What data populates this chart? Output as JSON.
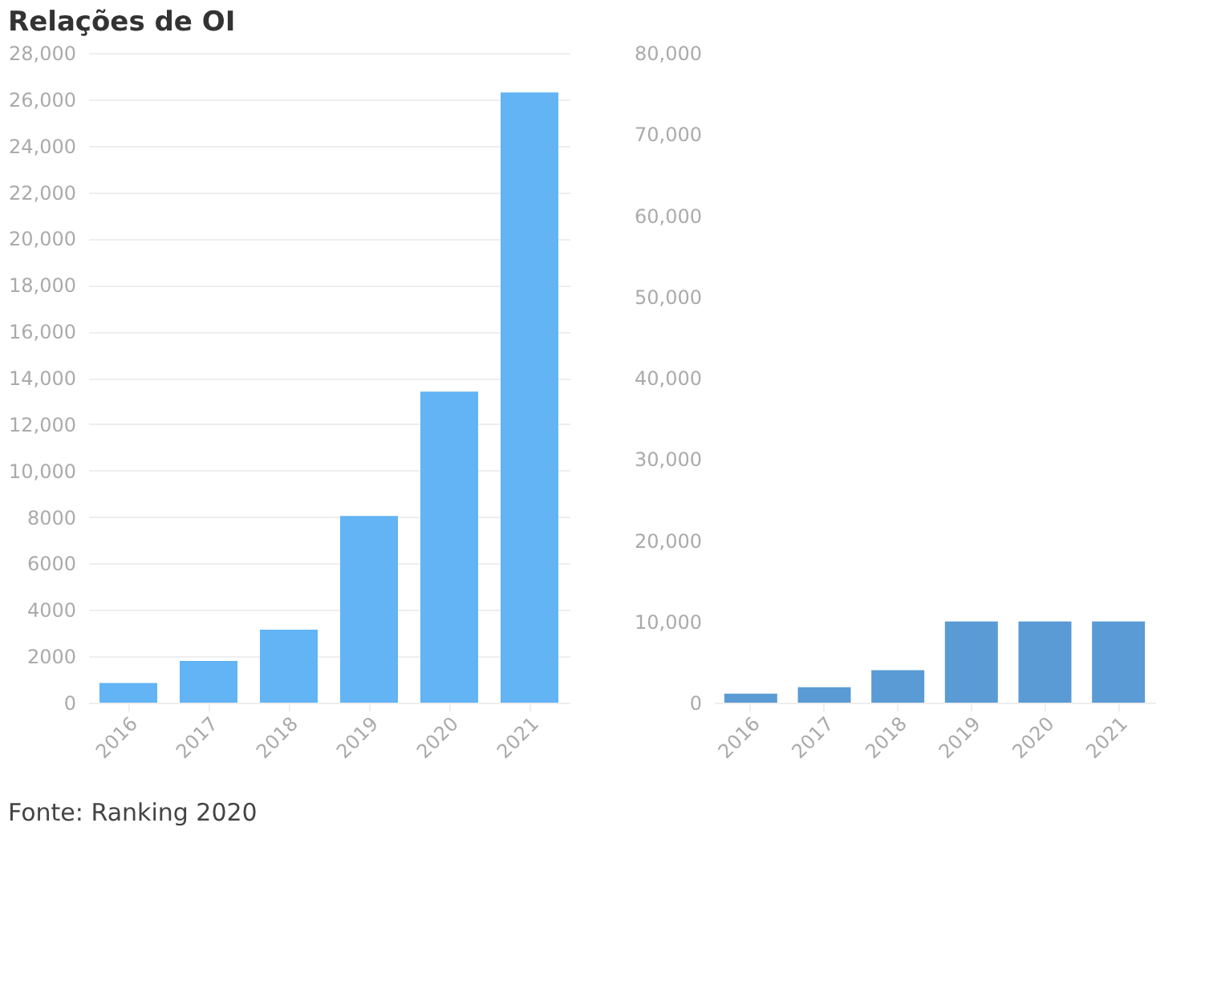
{
  "chart_data": [
    {
      "type": "bar",
      "title": "Relações de OI",
      "categories": [
        "2016",
        "2017",
        "2018",
        "2019",
        "2020",
        "2021"
      ],
      "values": [
        850,
        1800,
        3150,
        8050,
        13400,
        26300
      ],
      "color": "#62b4f5",
      "ylim": [
        0,
        28000
      ],
      "yticks": [
        0,
        2000,
        4000,
        6000,
        8000,
        {
          "value": 10000,
          "label": "10,000"
        },
        {
          "value": 12000,
          "label": "12,000"
        },
        {
          "value": 14000,
          "label": "14,000"
        },
        {
          "value": 16000,
          "label": "16,000"
        },
        {
          "value": 18000,
          "label": "18,000"
        },
        {
          "value": 20000,
          "label": "20,000"
        },
        {
          "value": 22000,
          "label": "22,000"
        },
        {
          "value": 24000,
          "label": "24,000"
        },
        {
          "value": 26000,
          "label": "26,000"
        },
        {
          "value": 28000,
          "label": "28,000"
        }
      ],
      "grid": "y",
      "annotations": [
        "Fonte: Ranking 2020"
      ]
    },
    {
      "type": "bar",
      "categories": [
        "2016",
        "2017",
        "2018",
        "2019",
        "2020",
        "2021"
      ],
      "values": [
        1100,
        1900,
        4000,
        10000,
        10000,
        10000
      ],
      "color": "#5b9bd5",
      "ylim": [
        0,
        80000
      ],
      "yticks": [
        0,
        {
          "value": 10000,
          "label": "10,000"
        },
        {
          "value": 20000,
          "label": "20,000"
        },
        {
          "value": 30000,
          "label": "30,000"
        },
        {
          "value": 40000,
          "label": "40,000"
        },
        {
          "value": 50000,
          "label": "50,000"
        },
        {
          "value": 60000,
          "label": "60,000"
        },
        {
          "value": 70000,
          "label": "70,000"
        },
        {
          "value": 80000,
          "label": "80,000"
        }
      ],
      "grid": false
    }
  ]
}
